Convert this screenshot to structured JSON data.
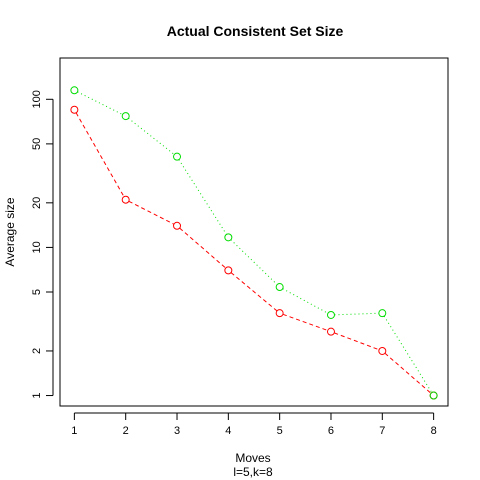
{
  "chart_data": {
    "type": "line",
    "title": "Actual Consistent Set Size",
    "xlabel": "Moves",
    "sublabel": "l=5,k=8",
    "ylabel": "Average size",
    "y_scale": "log",
    "x": [
      1,
      2,
      3,
      4,
      5,
      6,
      7,
      8
    ],
    "xlim": [
      0.72,
      8.28
    ],
    "ylim": [
      0.85,
      190
    ],
    "x_ticks": [
      "1",
      "2",
      "3",
      "4",
      "5",
      "6",
      "7",
      "8"
    ],
    "y_ticks": [
      1,
      2,
      5,
      10,
      20,
      50,
      100
    ],
    "y_tick_labels": [
      "1",
      "2",
      "5",
      "10",
      "20",
      "50",
      "100"
    ],
    "grid": false,
    "series": [
      {
        "color": "#ff0000",
        "line_style": "dashed",
        "marker": "open-circle",
        "values": [
          85,
          21,
          14,
          7,
          3.6,
          2.7,
          2.0,
          1.0
        ]
      },
      {
        "color": "#00dd00",
        "line_style": "dotted",
        "marker": "open-circle",
        "values": [
          115,
          77,
          41,
          11.7,
          5.4,
          3.5,
          3.6,
          1.0
        ]
      }
    ]
  }
}
